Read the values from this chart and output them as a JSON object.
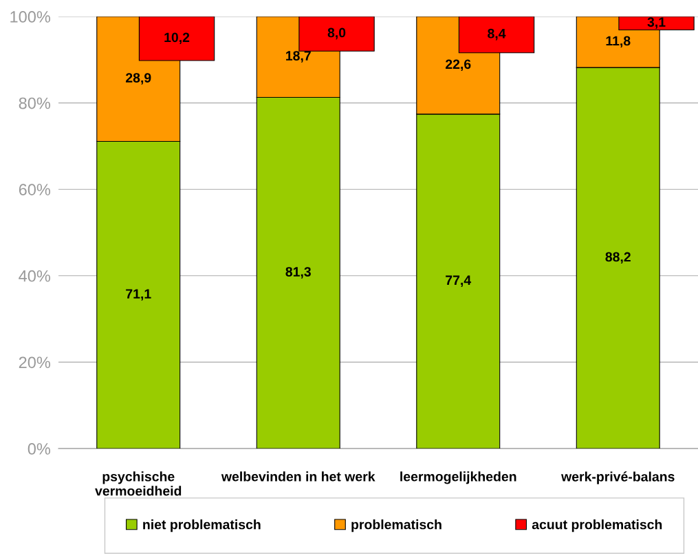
{
  "chart_data": {
    "type": "bar",
    "categories": [
      "psychische\nvermoeidheid",
      "welbevinden in het werk",
      "leermogelijkheden",
      "werk-privé-balans"
    ],
    "series": [
      {
        "name": "niet problematisch",
        "color": "#99cc00",
        "values": [
          71.1,
          81.3,
          77.4,
          88.2
        ],
        "base": [
          0,
          0,
          0,
          0
        ],
        "value_labels": [
          "71,1",
          "81,3",
          "77,4",
          "88,2"
        ]
      },
      {
        "name": "problematisch",
        "color": "#ff9900",
        "values": [
          28.9,
          18.7,
          22.6,
          11.8
        ],
        "base": [
          71.1,
          81.3,
          77.4,
          88.2
        ],
        "value_labels": [
          "28,9",
          "18,7",
          "22,6",
          "11,8"
        ]
      },
      {
        "name": "acuut problematisch",
        "color": "#ff0000",
        "values": [
          10.2,
          8.0,
          8.4,
          3.1
        ],
        "base": [
          89.8,
          92.0,
          91.6,
          96.9
        ],
        "value_labels": [
          "10,2",
          "8,0",
          "8,4",
          "3,1"
        ]
      }
    ],
    "ylim": [
      0,
      100
    ],
    "yticks": [
      {
        "value": 0,
        "label": "0%"
      },
      {
        "value": 20,
        "label": "20%"
      },
      {
        "value": 40,
        "label": "40%"
      },
      {
        "value": 60,
        "label": "60%"
      },
      {
        "value": 80,
        "label": "80%"
      },
      {
        "value": 100,
        "label": "100%"
      }
    ],
    "grid": "y",
    "legend": "bottom"
  }
}
